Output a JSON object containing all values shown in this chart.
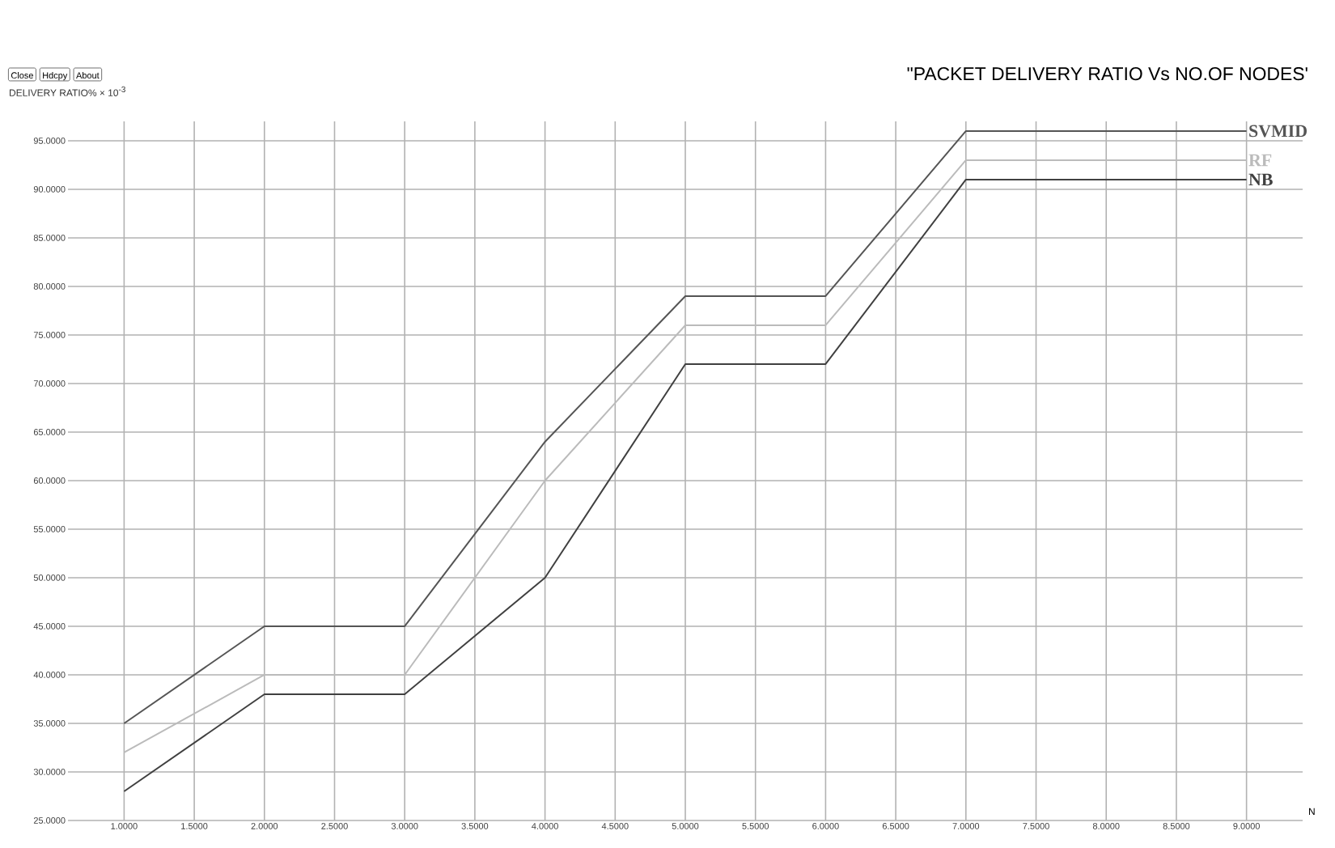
{
  "chart_data": {
    "type": "line",
    "title": "\"PACKET DELIVERY RATIO Vs NO.OF NODES'",
    "xlabel": "N",
    "ylabel": "DELIVERY RATIO% × 10$^{-3}$",
    "annotations": [
      "Close",
      "Hdcpy",
      "About"
    ],
    "x": [
      1,
      2,
      3,
      4,
      5,
      6,
      7,
      8,
      9
    ],
    "series": [
      {
        "name": "SVMID",
        "color": "#555555",
        "values": [
          35,
          45,
          45,
          64,
          79,
          79,
          96,
          96,
          96
        ]
      },
      {
        "name": "RF",
        "color": "#bbbbbb",
        "values": [
          32,
          40,
          40,
          60,
          76,
          76,
          93,
          93,
          93
        ]
      },
      {
        "name": "NB",
        "color": "#404040",
        "values": [
          28,
          38,
          38,
          50,
          72,
          72,
          91,
          91,
          91
        ]
      }
    ],
    "xlim": [
      0.6,
      9.4
    ],
    "ylim": [
      25,
      97
    ],
    "xticks": [
      {
        "value": 1,
        "label": "1.0000"
      },
      {
        "value": 1.5,
        "label": "1.5000"
      },
      {
        "value": 2,
        "label": "2.0000"
      },
      {
        "value": 2.5,
        "label": "2.5000"
      },
      {
        "value": 3,
        "label": "3.0000"
      },
      {
        "value": 3.5,
        "label": "3.5000"
      },
      {
        "value": 4,
        "label": "4.0000"
      },
      {
        "value": 4.5,
        "label": "4.5000"
      },
      {
        "value": 5,
        "label": "5.0000"
      },
      {
        "value": 5.5,
        "label": "5.5000"
      },
      {
        "value": 6,
        "label": "6.0000"
      },
      {
        "value": 6.5,
        "label": "6.5000"
      },
      {
        "value": 7,
        "label": "7.0000"
      },
      {
        "value": 7.5,
        "label": "7.5000"
      },
      {
        "value": 8,
        "label": "8.0000"
      },
      {
        "value": 8.5,
        "label": "8.5000"
      },
      {
        "value": 9,
        "label": "9.0000"
      }
    ],
    "yticks": [
      {
        "value": 25,
        "label": "25.0000"
      },
      {
        "value": 30,
        "label": "30.0000"
      },
      {
        "value": 35,
        "label": "35.0000"
      },
      {
        "value": 40,
        "label": "40.0000"
      },
      {
        "value": 45,
        "label": "45.0000"
      },
      {
        "value": 50,
        "label": "50.0000"
      },
      {
        "value": 55,
        "label": "55.0000"
      },
      {
        "value": 60,
        "label": "60.0000"
      },
      {
        "value": 65,
        "label": "65.0000"
      },
      {
        "value": 70,
        "label": "70.0000"
      },
      {
        "value": 75,
        "label": "75.0000"
      },
      {
        "value": 80,
        "label": "80.0000"
      },
      {
        "value": 85,
        "label": "85.0000"
      },
      {
        "value": 90,
        "label": "90.0000"
      },
      {
        "value": 95,
        "label": "95.0000"
      }
    ],
    "grid": true,
    "marker": "none",
    "line_style": "solid"
  }
}
